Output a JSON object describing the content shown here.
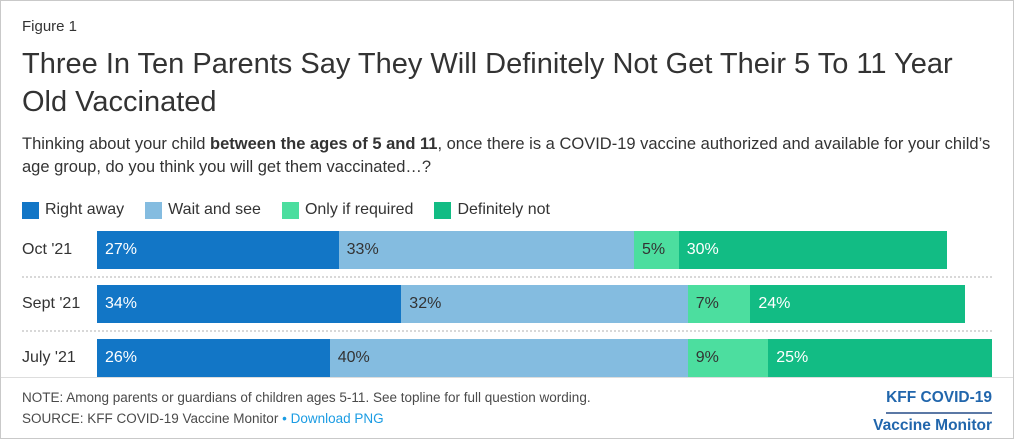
{
  "figure_label": "Figure 1",
  "title": "Three In Ten Parents Say They Will Definitely Not Get Their 5 To 11 Year Old Vaccinated",
  "subtitle": {
    "pre": "Thinking about your child ",
    "bold": "between the ages of 5 and 11",
    "post": ", once there is a COVID-19 vaccine authorized and available for your child’s age group, do you think you will get them vaccinated…?"
  },
  "chart_data": {
    "type": "bar",
    "orientation": "horizontal",
    "stacked": true,
    "categories": [
      "Oct '21",
      "Sept '21",
      "July '21"
    ],
    "series": [
      {
        "name": "Right away",
        "color": "#1276c6",
        "label_color": "#ffffff",
        "values": [
          27,
          34,
          26
        ]
      },
      {
        "name": "Wait and see",
        "color": "#84bce0",
        "label_color": "#333333",
        "values": [
          33,
          32,
          40
        ]
      },
      {
        "name": "Only if required",
        "color": "#4cde9f",
        "label_color": "#333333",
        "values": [
          5,
          7,
          9
        ]
      },
      {
        "name": "Definitely not",
        "color": "#12bc84",
        "label_color": "#ffffff",
        "values": [
          30,
          24,
          25
        ]
      }
    ],
    "value_suffix": "%",
    "xlim": [
      0,
      100
    ],
    "legend_position": "top",
    "grid": false
  },
  "footer": {
    "note": "NOTE: Among parents or guardians of children ages 5-11. See topline for full question wording.",
    "source": "SOURCE: KFF COVID-19 Vaccine Monitor",
    "separator": "•",
    "download_label": "Download PNG",
    "logo_line1": "KFF COVID-19",
    "logo_line2": "Vaccine Monitor",
    "link_color": "#1b9ce3",
    "logo_color": "#2166ac"
  }
}
